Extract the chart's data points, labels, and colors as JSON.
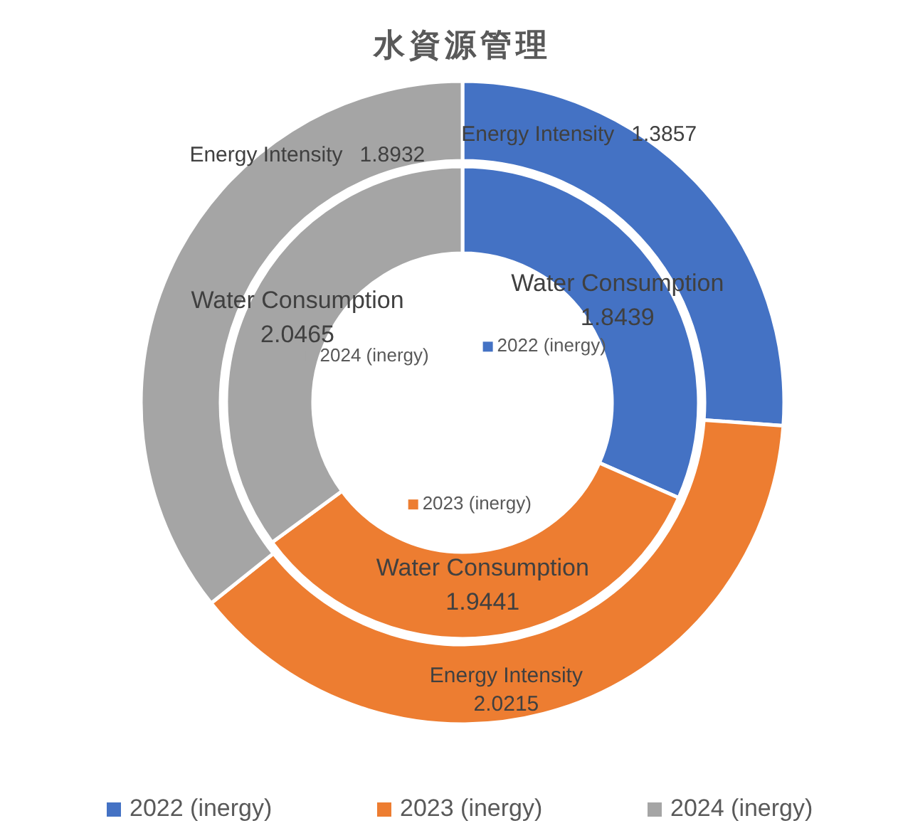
{
  "chart_data": {
    "type": "donut",
    "title": "水資源管理",
    "categories": [
      "2022 (inergy)",
      "2023 (inergy)",
      "2024 (inergy)"
    ],
    "series": [
      {
        "name": "Energy Intensity",
        "values": [
          1.3857,
          2.0215,
          1.8932
        ]
      },
      {
        "name": "Water Consumption",
        "values": [
          1.8439,
          1.9441,
          2.0465
        ]
      }
    ],
    "colors": [
      "#4472c4",
      "#ed7d31",
      "#a5a5a5"
    ],
    "data_labels": true,
    "legend": "bottom"
  }
}
